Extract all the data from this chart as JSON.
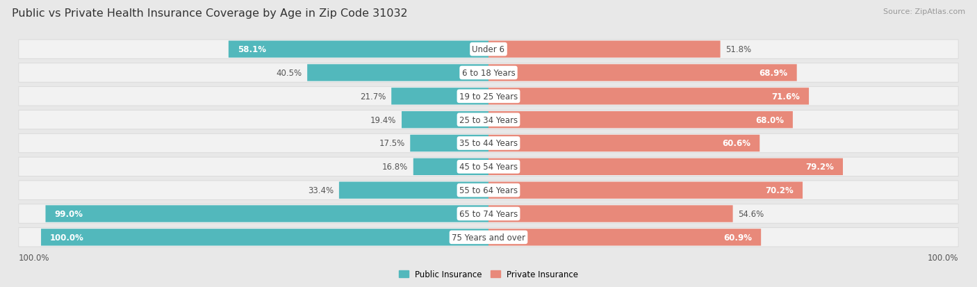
{
  "title": "Public vs Private Health Insurance Coverage by Age in Zip Code 31032",
  "source": "Source: ZipAtlas.com",
  "categories": [
    "Under 6",
    "6 to 18 Years",
    "19 to 25 Years",
    "25 to 34 Years",
    "35 to 44 Years",
    "45 to 54 Years",
    "55 to 64 Years",
    "65 to 74 Years",
    "75 Years and over"
  ],
  "public_values": [
    58.1,
    40.5,
    21.7,
    19.4,
    17.5,
    16.8,
    33.4,
    99.0,
    100.0
  ],
  "private_values": [
    51.8,
    68.9,
    71.6,
    68.0,
    60.6,
    79.2,
    70.2,
    54.6,
    60.9
  ],
  "public_color": "#52b8bc",
  "private_color": "#e8897a",
  "bg_color": "#e8e8e8",
  "row_bg_color": "#f2f2f2",
  "row_border_color": "#d8d8d8",
  "title_fontsize": 11.5,
  "label_fontsize": 8.5,
  "source_fontsize": 8.0,
  "legend_fontsize": 8.5,
  "max_value": 100.0,
  "x_axis_label": "100.0%"
}
